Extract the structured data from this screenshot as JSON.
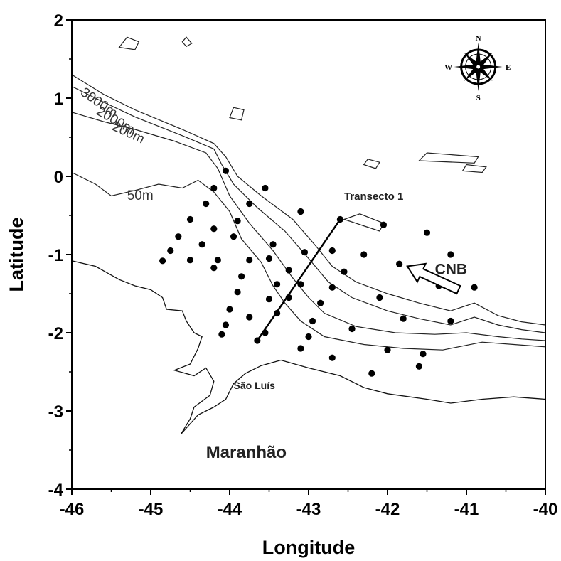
{
  "map": {
    "x_axis": {
      "title": "Longitude",
      "range": [
        -46,
        -40
      ],
      "ticks": [
        {
          "value": -46,
          "label": "-46"
        },
        {
          "value": -45,
          "label": "-45"
        },
        {
          "value": -44,
          "label": "-44"
        },
        {
          "value": -43,
          "label": "-43"
        },
        {
          "value": -42,
          "label": "-42"
        },
        {
          "value": -41,
          "label": "-41"
        },
        {
          "value": -40,
          "label": "-40"
        }
      ]
    },
    "y_axis": {
      "title": "Latitude",
      "range": [
        -4,
        2
      ],
      "ticks": [
        {
          "value": 2,
          "label": "2"
        },
        {
          "value": 1,
          "label": "1"
        },
        {
          "value": 0,
          "label": "0"
        },
        {
          "value": -1,
          "label": "-1"
        },
        {
          "value": -2,
          "label": "-2"
        },
        {
          "value": -3,
          "label": "-3"
        },
        {
          "value": -4,
          "label": "-4"
        }
      ]
    },
    "isobath_labels": [
      {
        "label": "3000m",
        "lon": -45.9,
        "lat": 1.05
      },
      {
        "label": "2000m",
        "lon": -45.7,
        "lat": 0.8
      },
      {
        "label": "200m",
        "lon": -45.5,
        "lat": 0.6
      },
      {
        "label": "50m",
        "lon": -45.3,
        "lat": -0.3
      }
    ],
    "place_labels": {
      "transect": {
        "label": "Transecto 1",
        "lon": -42.55,
        "lat": -0.3
      },
      "current": {
        "label": "CNB",
        "lon": -41.4,
        "lat": -1.25
      },
      "city": {
        "label": "São Luís",
        "lon": -43.95,
        "lat": -2.72
      },
      "state": {
        "label": "Maranhão",
        "lon": -44.3,
        "lat": -3.6
      }
    },
    "compass": {
      "n": "N",
      "s": "S",
      "e": "E",
      "w": "W",
      "lon": -40.85,
      "lat": 1.4
    },
    "current_arrow": {
      "from_lon": -41.1,
      "from_lat": -1.45,
      "to_lon": -41.75,
      "to_lat": -1.15,
      "color": "#ffffff"
    },
    "transect_line": {
      "from_lon": -43.65,
      "from_lat": -2.1,
      "to_lon": -42.6,
      "to_lat": -0.55
    },
    "stations": [
      [
        -44.05,
        0.07
      ],
      [
        -44.2,
        -0.15
      ],
      [
        -43.55,
        -0.15
      ],
      [
        -44.3,
        -0.35
      ],
      [
        -43.75,
        -0.35
      ],
      [
        -44.5,
        -0.55
      ],
      [
        -43.9,
        -0.57
      ],
      [
        -44.2,
        -0.67
      ],
      [
        -44.65,
        -0.77
      ],
      [
        -43.95,
        -0.77
      ],
      [
        -43.1,
        -0.45
      ],
      [
        -42.6,
        -0.55
      ],
      [
        -42.05,
        -0.62
      ],
      [
        -44.75,
        -0.95
      ],
      [
        -44.35,
        -0.87
      ],
      [
        -43.45,
        -0.87
      ],
      [
        -42.7,
        -0.95
      ],
      [
        -43.05,
        -0.97
      ],
      [
        -42.3,
        -1.0
      ],
      [
        -41.5,
        -0.72
      ],
      [
        -41.2,
        -1.0
      ],
      [
        -44.5,
        -1.07
      ],
      [
        -44.15,
        -1.07
      ],
      [
        -44.2,
        -1.17
      ],
      [
        -44.85,
        -1.08
      ],
      [
        -43.75,
        -1.07
      ],
      [
        -43.5,
        -1.05
      ],
      [
        -43.25,
        -1.2
      ],
      [
        -42.55,
        -1.22
      ],
      [
        -41.85,
        -1.12
      ],
      [
        -43.85,
        -1.28
      ],
      [
        -43.9,
        -1.48
      ],
      [
        -43.4,
        -1.38
      ],
      [
        -43.1,
        -1.38
      ],
      [
        -42.7,
        -1.42
      ],
      [
        -42.1,
        -1.55
      ],
      [
        -41.35,
        -1.4
      ],
      [
        -40.9,
        -1.42
      ],
      [
        -44.0,
        -1.7
      ],
      [
        -43.5,
        -1.57
      ],
      [
        -43.25,
        -1.55
      ],
      [
        -42.85,
        -1.62
      ],
      [
        -44.05,
        -1.9
      ],
      [
        -43.75,
        -1.8
      ],
      [
        -43.4,
        -1.75
      ],
      [
        -42.95,
        -1.85
      ],
      [
        -42.45,
        -1.95
      ],
      [
        -41.8,
        -1.82
      ],
      [
        -41.2,
        -1.85
      ],
      [
        -44.1,
        -2.02
      ],
      [
        -43.55,
        -2.0
      ],
      [
        -43.0,
        -2.05
      ],
      [
        -43.65,
        -2.1
      ],
      [
        -43.1,
        -2.2
      ],
      [
        -42.0,
        -2.22
      ],
      [
        -41.55,
        -2.27
      ],
      [
        -42.7,
        -2.32
      ],
      [
        -41.6,
        -2.43
      ],
      [
        -42.2,
        -2.52
      ]
    ],
    "contours": [
      {
        "depth": "3000m",
        "points": [
          [
            -46,
            1.3
          ],
          [
            -45.6,
            1.05
          ],
          [
            -45.2,
            0.85
          ],
          [
            -44.6,
            0.6
          ],
          [
            -44.2,
            0.42
          ],
          [
            -44.05,
            0.25
          ],
          [
            -43.9,
            0.0
          ],
          [
            -43.6,
            -0.25
          ],
          [
            -43.2,
            -0.55
          ],
          [
            -42.9,
            -0.9
          ],
          [
            -42.7,
            -1.15
          ],
          [
            -42.4,
            -1.35
          ],
          [
            -42.0,
            -1.5
          ],
          [
            -41.6,
            -1.62
          ],
          [
            -41.2,
            -1.72
          ],
          [
            -40.9,
            -1.62
          ],
          [
            -40.6,
            -1.78
          ],
          [
            -40.3,
            -1.86
          ],
          [
            -40.0,
            -1.9
          ]
        ]
      },
      {
        "depth": "2000m",
        "points": [
          [
            -46,
            1.15
          ],
          [
            -45.6,
            0.95
          ],
          [
            -45.2,
            0.76
          ],
          [
            -44.6,
            0.52
          ],
          [
            -44.2,
            0.35
          ],
          [
            -44.1,
            0.15
          ],
          [
            -43.95,
            -0.1
          ],
          [
            -43.65,
            -0.4
          ],
          [
            -43.3,
            -0.7
          ],
          [
            -43.0,
            -1.05
          ],
          [
            -42.75,
            -1.35
          ],
          [
            -42.45,
            -1.55
          ],
          [
            -42.0,
            -1.72
          ],
          [
            -41.6,
            -1.82
          ],
          [
            -41.2,
            -1.9
          ],
          [
            -40.9,
            -1.8
          ],
          [
            -40.6,
            -1.9
          ],
          [
            -40.3,
            -1.96
          ],
          [
            -40.0,
            -2.0
          ]
        ]
      },
      {
        "depth": "200m",
        "points": [
          [
            -46,
            0.82
          ],
          [
            -45.6,
            0.7
          ],
          [
            -45.2,
            0.6
          ],
          [
            -44.7,
            0.45
          ],
          [
            -44.3,
            0.3
          ],
          [
            -44.15,
            0.1
          ],
          [
            -44.0,
            -0.25
          ],
          [
            -43.75,
            -0.6
          ],
          [
            -43.45,
            -0.95
          ],
          [
            -43.2,
            -1.3
          ],
          [
            -43.0,
            -1.55
          ],
          [
            -42.8,
            -1.75
          ],
          [
            -42.4,
            -1.92
          ],
          [
            -41.9,
            -2.0
          ],
          [
            -41.4,
            -2.02
          ],
          [
            -41.0,
            -2.0
          ],
          [
            -40.6,
            -2.05
          ],
          [
            -40.3,
            -2.08
          ],
          [
            -40.0,
            -2.1
          ]
        ]
      },
      {
        "depth": "50m",
        "points": [
          [
            -46,
            0.05
          ],
          [
            -45.7,
            -0.1
          ],
          [
            -45.5,
            -0.25
          ],
          [
            -45.2,
            -0.18
          ],
          [
            -44.9,
            -0.1
          ],
          [
            -44.6,
            -0.15
          ],
          [
            -44.4,
            -0.05
          ],
          [
            -44.2,
            -0.2
          ],
          [
            -44.0,
            -0.45
          ],
          [
            -43.85,
            -0.8
          ],
          [
            -43.6,
            -1.1
          ],
          [
            -43.45,
            -1.4
          ],
          [
            -43.3,
            -1.62
          ],
          [
            -43.1,
            -1.85
          ],
          [
            -42.8,
            -2.05
          ],
          [
            -42.3,
            -2.15
          ],
          [
            -41.8,
            -2.2
          ],
          [
            -41.3,
            -2.22
          ],
          [
            -40.8,
            -2.12
          ],
          [
            -40.4,
            -2.15
          ],
          [
            -40.0,
            -2.18
          ]
        ]
      }
    ],
    "coastline": [
      [
        -46,
        -1.08
      ],
      [
        -45.7,
        -1.15
      ],
      [
        -45.4,
        -1.32
      ],
      [
        -45.2,
        -1.4
      ],
      [
        -45.0,
        -1.45
      ],
      [
        -44.85,
        -1.55
      ],
      [
        -44.8,
        -1.7
      ],
      [
        -44.6,
        -1.72
      ],
      [
        -44.55,
        -1.85
      ],
      [
        -44.45,
        -2.0
      ],
      [
        -44.35,
        -2.05
      ],
      [
        -44.4,
        -2.2
      ],
      [
        -44.5,
        -2.4
      ],
      [
        -44.7,
        -2.48
      ],
      [
        -44.45,
        -2.55
      ],
      [
        -44.3,
        -2.45
      ],
      [
        -44.2,
        -2.62
      ],
      [
        -44.25,
        -2.8
      ],
      [
        -44.45,
        -2.95
      ],
      [
        -44.5,
        -3.1
      ],
      [
        -44.62,
        -3.3
      ],
      [
        -44.4,
        -3.05
      ],
      [
        -44.2,
        -2.95
      ],
      [
        -44.05,
        -2.85
      ],
      [
        -43.95,
        -2.65
      ],
      [
        -43.8,
        -2.52
      ],
      [
        -43.6,
        -2.42
      ],
      [
        -43.35,
        -2.35
      ],
      [
        -43.0,
        -2.45
      ],
      [
        -42.6,
        -2.55
      ],
      [
        -42.3,
        -2.7
      ],
      [
        -42.0,
        -2.78
      ],
      [
        -41.5,
        -2.85
      ],
      [
        -41.2,
        -2.9
      ],
      [
        -40.8,
        -2.85
      ],
      [
        -40.4,
        -2.82
      ],
      [
        -40.0,
        -2.85
      ]
    ],
    "islands": [
      [
        [
          -45.4,
          1.65
        ],
        [
          -45.2,
          1.62
        ],
        [
          -45.15,
          1.72
        ],
        [
          -45.3,
          1.78
        ],
        [
          -45.4,
          1.65
        ]
      ],
      [
        [
          -44.55,
          1.66
        ],
        [
          -44.48,
          1.7
        ],
        [
          -44.55,
          1.78
        ],
        [
          -44.6,
          1.72
        ],
        [
          -44.55,
          1.66
        ]
      ],
      [
        [
          -44.0,
          0.75
        ],
        [
          -43.85,
          0.72
        ],
        [
          -43.82,
          0.85
        ],
        [
          -43.95,
          0.88
        ],
        [
          -44.0,
          0.75
        ]
      ],
      [
        [
          -42.3,
          0.15
        ],
        [
          -42.15,
          0.1
        ],
        [
          -42.1,
          0.18
        ],
        [
          -42.25,
          0.22
        ],
        [
          -42.3,
          0.15
        ]
      ],
      [
        [
          -41.6,
          0.2
        ],
        [
          -40.9,
          0.17
        ],
        [
          -40.85,
          0.25
        ],
        [
          -41.5,
          0.3
        ],
        [
          -41.6,
          0.2
        ]
      ],
      [
        [
          -41.05,
          0.07
        ],
        [
          -40.8,
          0.05
        ],
        [
          -40.75,
          0.12
        ],
        [
          -41.0,
          0.15
        ],
        [
          -41.05,
          0.07
        ]
      ],
      [
        [
          -42.55,
          -0.55
        ],
        [
          -42.1,
          -0.7
        ],
        [
          -42.05,
          -0.6
        ],
        [
          -42.35,
          -0.48
        ],
        [
          -42.55,
          -0.55
        ]
      ]
    ]
  }
}
